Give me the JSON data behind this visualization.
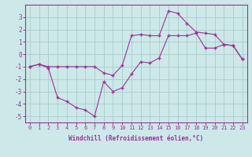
{
  "series1_x": [
    0,
    1,
    2,
    3,
    4,
    5,
    6,
    7,
    8,
    9,
    10,
    11,
    12,
    13,
    14,
    15,
    16,
    17,
    18,
    19,
    20,
    21,
    22,
    23
  ],
  "series1_y": [
    -1.0,
    -0.8,
    -1.0,
    -1.0,
    -1.0,
    -1.0,
    -1.0,
    -1.0,
    -1.5,
    -1.7,
    -0.9,
    1.5,
    1.6,
    1.5,
    1.5,
    3.5,
    3.3,
    2.5,
    1.8,
    1.7,
    1.6,
    0.8,
    0.7,
    -0.4
  ],
  "series2_x": [
    0,
    1,
    2,
    3,
    4,
    5,
    6,
    7,
    8,
    9,
    10,
    11,
    12,
    13,
    14,
    15,
    16,
    17,
    18,
    19,
    20,
    21,
    22,
    23
  ],
  "series2_y": [
    -1.0,
    -0.8,
    -1.1,
    -3.5,
    -3.8,
    -4.3,
    -4.5,
    -5.0,
    -2.2,
    -3.0,
    -2.7,
    -1.6,
    -0.6,
    -0.7,
    -0.3,
    1.5,
    1.5,
    1.5,
    1.7,
    0.5,
    0.5,
    0.8,
    0.7,
    -0.4
  ],
  "line_color": "#993399",
  "bg_color": "#cce8e8",
  "grid_color": "#aacccc",
  "xlabel": "Windchill (Refroidissement éolien,°C)",
  "xlim_min": -0.5,
  "xlim_max": 23.5,
  "ylim_min": -5.5,
  "ylim_max": 4.0,
  "yticks": [
    -5,
    -4,
    -3,
    -2,
    -1,
    0,
    1,
    2,
    3
  ],
  "xticks": [
    0,
    1,
    2,
    3,
    4,
    5,
    6,
    7,
    8,
    9,
    10,
    11,
    12,
    13,
    14,
    15,
    16,
    17,
    18,
    19,
    20,
    21,
    22,
    23
  ],
  "marker": "+",
  "tick_fontsize": 5,
  "xlabel_fontsize": 5.5
}
